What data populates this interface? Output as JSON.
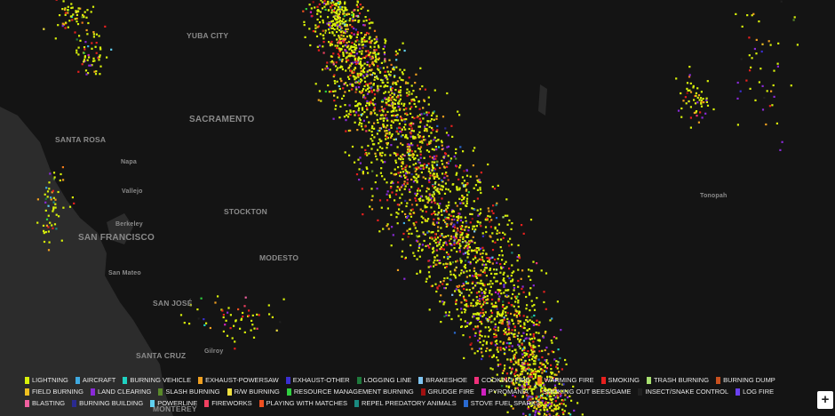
{
  "map": {
    "places": [
      {
        "label": "YUBA CITY",
        "major": true
      },
      {
        "label": "SACRAMENTO",
        "major": true
      },
      {
        "label": "SANTA ROSA",
        "major": true
      },
      {
        "label": "Napa",
        "major": false
      },
      {
        "label": "Vallejo",
        "major": false
      },
      {
        "label": "Berkeley",
        "major": false
      },
      {
        "label": "SAN FRANCISCO",
        "major": true
      },
      {
        "label": "STOCKTON",
        "major": true
      },
      {
        "label": "San Mateo",
        "major": false
      },
      {
        "label": "MODESTO",
        "major": true
      },
      {
        "label": "SAN JOSÉ",
        "major": true
      },
      {
        "label": "Gilroy",
        "major": false
      },
      {
        "label": "SANTA CRUZ",
        "major": true
      },
      {
        "label": "MONTEREY",
        "major": true
      },
      {
        "label": "Tonopah",
        "major": false
      }
    ],
    "legend": [
      {
        "name": "LIGHTNING",
        "color": "#d9f20a"
      },
      {
        "name": "AIRCRAFT",
        "color": "#3fa9e0"
      },
      {
        "name": "BURNING VEHICLE",
        "color": "#1fd1c1"
      },
      {
        "name": "EXHAUST-POWERSAW",
        "color": "#f0a020"
      },
      {
        "name": "EXHAUST-OTHER",
        "color": "#3a2fd0"
      },
      {
        "name": "LOGGING LINE",
        "color": "#1e7a3c"
      },
      {
        "name": "BRAKESHOE",
        "color": "#7fc4f0"
      },
      {
        "name": "COOKING FIRE",
        "color": "#f0307a"
      },
      {
        "name": "WARMING FIRE",
        "color": "#f07a1a"
      },
      {
        "name": "SMOKING",
        "color": "#e8201e"
      },
      {
        "name": "TRASH BURNING",
        "color": "#a8e070"
      },
      {
        "name": "BURNING DUMP",
        "color": "#c8501e"
      },
      {
        "name": "FIELD BURNING",
        "color": "#f0c020"
      },
      {
        "name": "LAND CLEARING",
        "color": "#8a2ad8"
      },
      {
        "name": "SLASH BURNING",
        "color": "#5a8a2a"
      },
      {
        "name": "R/W BURNING",
        "color": "#f0e040"
      },
      {
        "name": "RESOURCE MANAGEMENT BURNING",
        "color": "#30d040"
      },
      {
        "name": "GRUDGE FIRE",
        "color": "#a01010"
      },
      {
        "name": "PYROMANIA",
        "color": "#d020c0"
      },
      {
        "name": "SMOKING OUT BEES/GAME",
        "color": "#202020"
      },
      {
        "name": "INSECT/SNAKE CONTROL",
        "color": "#202020"
      },
      {
        "name": "LOG FIRE",
        "color": "#6a40f0"
      },
      {
        "name": "BLASTING",
        "color": "#f060a0"
      },
      {
        "name": "BURNING BUILDING",
        "color": "#2a2a90"
      },
      {
        "name": "POWERLINE",
        "color": "#60d0f0"
      },
      {
        "name": "FIREWORKS",
        "color": "#f04060"
      },
      {
        "name": "PLAYING WITH MATCHES",
        "color": "#f05020"
      },
      {
        "name": "REPEL PREDATORY ANIMALS",
        "color": "#1a8a80"
      },
      {
        "name": "STOVE FUEL SPARKS",
        "color": "#2a6ad0"
      }
    ],
    "zoom_in": "+"
  }
}
